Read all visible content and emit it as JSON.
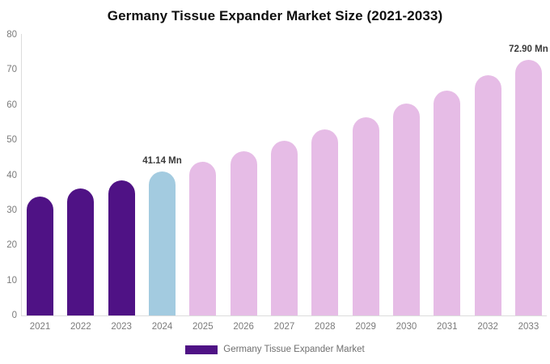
{
  "title": "Germany Tissue Expander Market Size (2021-2033)",
  "legend": {
    "label": "Germany Tissue Expander Market"
  },
  "colors": {
    "historical": "#4f1285",
    "base_year": "#a3cbe0",
    "forecast": "#e6bce6",
    "axis_line": "#dcdcdc",
    "tick_text": "#7b7b7b",
    "annotation_text": "#3a3a3a",
    "title_text": "#0f0f0f"
  },
  "chart_data": {
    "type": "bar",
    "title": "Germany Tissue Expander Market Size (2021-2033)",
    "xlabel": "",
    "ylabel": "",
    "ylim": [
      0,
      80
    ],
    "yticks": [
      0,
      10,
      20,
      30,
      40,
      50,
      60,
      70,
      80
    ],
    "grid": false,
    "legend_position": "bottom",
    "categories": [
      "2021",
      "2022",
      "2023",
      "2024",
      "2025",
      "2026",
      "2027",
      "2028",
      "2029",
      "2030",
      "2031",
      "2032",
      "2033"
    ],
    "values": [
      34.0,
      36.2,
      38.6,
      41.14,
      43.8,
      46.7,
      49.8,
      53.1,
      56.6,
      60.3,
      64.2,
      68.5,
      72.9
    ],
    "bar_roles": [
      "historical",
      "historical",
      "historical",
      "base_year",
      "forecast",
      "forecast",
      "forecast",
      "forecast",
      "forecast",
      "forecast",
      "forecast",
      "forecast",
      "forecast"
    ],
    "annotations": [
      {
        "index": 3,
        "text": "41.14 Mn"
      },
      {
        "index": 12,
        "text": "72.90 Mn"
      }
    ],
    "series_name": "Germany Tissue Expander Market"
  }
}
